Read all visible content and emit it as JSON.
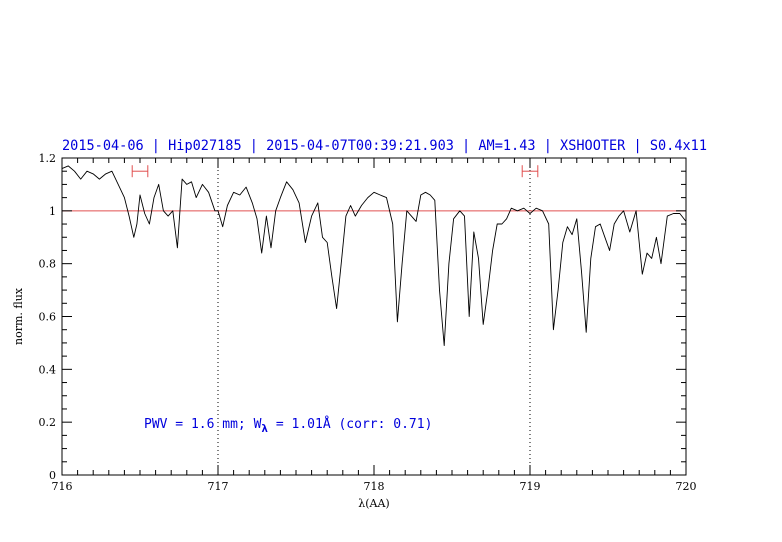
{
  "chart_data": {
    "type": "line",
    "title": "2015-04-06 | Hip027185 | 2015-04-07T00:39:21.903 | AM=1.43 | XSHOOTER | S0.4x11",
    "xlabel": "λ(AA)",
    "ylabel": "norm. flux",
    "xlim": [
      716,
      720
    ],
    "ylim": [
      0,
      1.2
    ],
    "x_ticks": [
      "716",
      "717",
      "718",
      "719",
      "720"
    ],
    "y_ticks": [
      "0",
      "0.2",
      "0.4",
      "0.6",
      "0.8",
      "1",
      "1.2"
    ],
    "annotation": {
      "prefix": "PWV = 1.6 mm; W",
      "subscript": "λ",
      "suffix": " = 1.01Å (corr: 0.71)"
    },
    "reference_line": {
      "y": 1.0,
      "color": "#e05050"
    },
    "vertical_markers": [
      717.0,
      719.0
    ],
    "range_markers": [
      {
        "x1": 716.45,
        "x2": 716.55,
        "y": 1.15,
        "color": "#e05050"
      },
      {
        "x1": 718.95,
        "x2": 719.05,
        "y": 1.15,
        "color": "#e05050"
      }
    ],
    "series": [
      {
        "color": "#000000",
        "x": [
          716.0,
          716.04,
          716.08,
          716.12,
          716.16,
          716.2,
          716.24,
          716.28,
          716.32,
          716.36,
          716.4,
          716.43,
          716.46,
          716.48,
          716.5,
          716.53,
          716.56,
          716.59,
          716.62,
          716.65,
          716.68,
          716.71,
          716.74,
          716.77,
          716.8,
          716.83,
          716.86,
          716.9,
          716.94,
          716.98,
          717.0,
          717.03,
          717.06,
          717.1,
          717.14,
          717.18,
          717.22,
          717.25,
          717.28,
          717.31,
          717.34,
          717.37,
          717.4,
          717.44,
          717.48,
          717.52,
          717.56,
          717.6,
          717.64,
          717.67,
          717.7,
          717.73,
          717.76,
          717.79,
          717.82,
          717.85,
          717.88,
          717.92,
          717.96,
          718.0,
          718.04,
          718.08,
          718.12,
          718.15,
          718.18,
          718.21,
          718.24,
          718.27,
          718.3,
          718.33,
          718.36,
          718.39,
          718.42,
          718.45,
          718.48,
          718.51,
          718.55,
          718.58,
          718.61,
          718.64,
          718.67,
          718.7,
          718.73,
          718.76,
          718.79,
          718.82,
          718.85,
          718.88,
          718.92,
          718.96,
          719.0,
          719.04,
          719.08,
          719.12,
          719.15,
          719.18,
          719.21,
          719.24,
          719.27,
          719.3,
          719.33,
          719.36,
          719.39,
          719.42,
          719.45,
          719.48,
          719.51,
          719.54,
          719.57,
          719.6,
          719.64,
          719.68,
          719.72,
          719.75,
          719.78,
          719.81,
          719.84,
          719.88,
          719.92,
          719.96,
          720.0
        ],
        "y": [
          1.16,
          1.17,
          1.15,
          1.12,
          1.15,
          1.14,
          1.12,
          1.14,
          1.15,
          1.1,
          1.05,
          0.98,
          0.9,
          0.95,
          1.06,
          0.99,
          0.95,
          1.05,
          1.1,
          1.0,
          0.98,
          1.0,
          0.86,
          1.12,
          1.1,
          1.11,
          1.05,
          1.1,
          1.07,
          1.0,
          1.0,
          0.94,
          1.02,
          1.07,
          1.06,
          1.09,
          1.03,
          0.97,
          0.84,
          0.98,
          0.86,
          1.0,
          1.05,
          1.11,
          1.08,
          1.03,
          0.88,
          0.98,
          1.03,
          0.9,
          0.88,
          0.75,
          0.63,
          0.8,
          0.98,
          1.02,
          0.98,
          1.02,
          1.05,
          1.07,
          1.06,
          1.05,
          0.95,
          0.58,
          0.8,
          1.0,
          0.98,
          0.96,
          1.06,
          1.07,
          1.06,
          1.04,
          0.7,
          0.49,
          0.8,
          0.97,
          1.0,
          0.98,
          0.6,
          0.92,
          0.82,
          0.57,
          0.7,
          0.85,
          0.95,
          0.95,
          0.97,
          1.01,
          1.0,
          1.01,
          0.99,
          1.01,
          1.0,
          0.95,
          0.55,
          0.7,
          0.88,
          0.94,
          0.91,
          0.97,
          0.77,
          0.54,
          0.82,
          0.94,
          0.95,
          0.9,
          0.85,
          0.95,
          0.98,
          1.0,
          0.92,
          1.0,
          0.76,
          0.84,
          0.82,
          0.9,
          0.8,
          0.98,
          0.99,
          0.99,
          0.96
        ]
      }
    ]
  }
}
